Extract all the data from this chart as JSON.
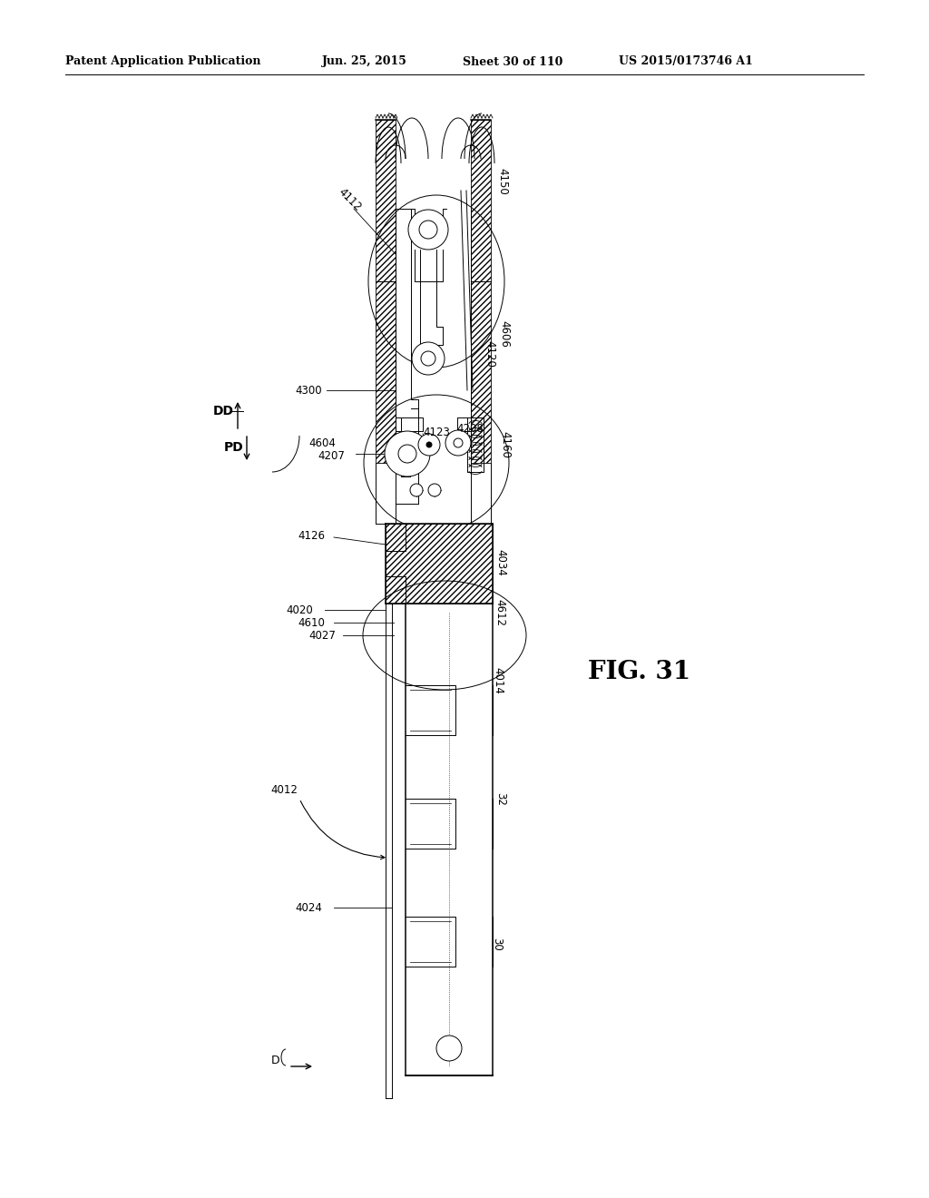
{
  "bg_color": "#ffffff",
  "header_text": "Patent Application Publication",
  "header_date": "Jun. 25, 2015",
  "header_sheet": "Sheet 30 of 110",
  "header_patent": "US 2015/0173746 A1",
  "fig_label": "FIG. 31",
  "line_color": "#000000",
  "lw_thin": 0.7,
  "lw_med": 1.1,
  "lw_thick": 1.6,
  "label_fontsize": 8.5
}
